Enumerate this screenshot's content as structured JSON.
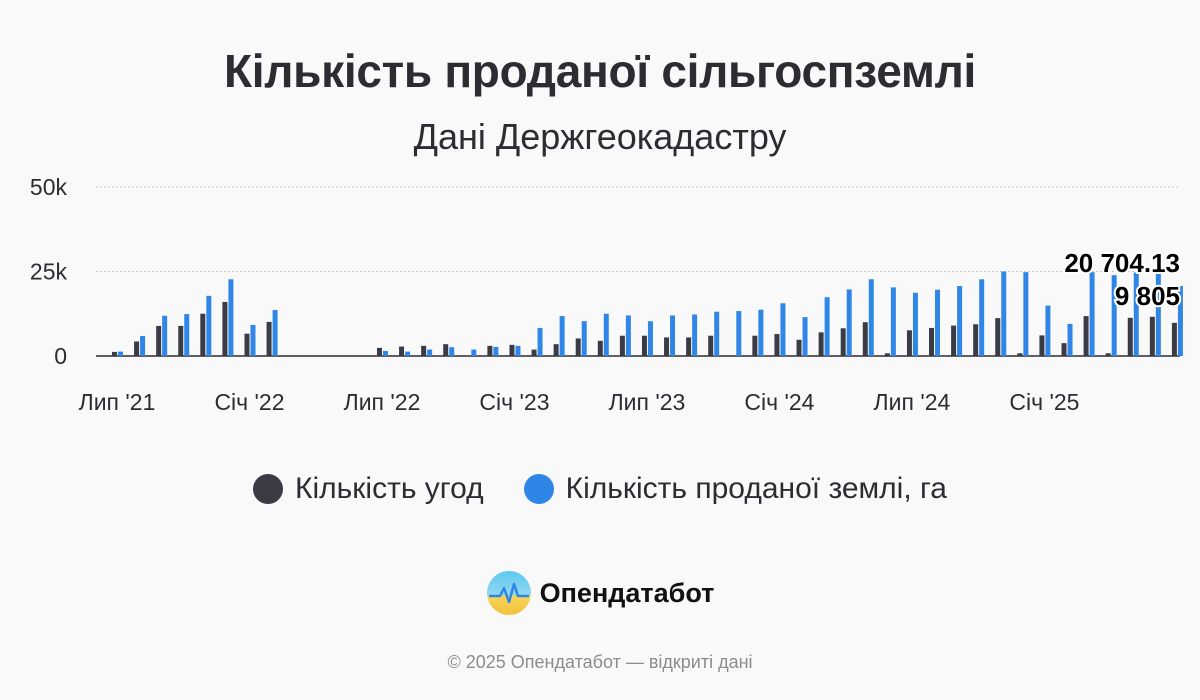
{
  "chart_data": {
    "type": "bar",
    "title": "Кількість проданої сільгоспземлі",
    "subtitle": "Дані Держгеокадастру",
    "x_tick_labels": [
      "Лип '21",
      "Січ '22",
      "Лип '22",
      "Січ '23",
      "Лип '23",
      "Січ '24",
      "Лип '24",
      "Січ '25"
    ],
    "y_tick_labels": [
      "0",
      "25k",
      "50k"
    ],
    "ylim": [
      0,
      50000
    ],
    "grid": true,
    "legend_position": "bottom",
    "categories": [
      "2021-07",
      "2021-08",
      "2021-09",
      "2021-10",
      "2021-11",
      "2021-12",
      "2022-01",
      "2022-02",
      "2022-03",
      "2022-04",
      "2022-05",
      "2022-06",
      "2022-07",
      "2022-08",
      "2022-09",
      "2022-10",
      "2022-11",
      "2022-12",
      "2023-01",
      "2023-02",
      "2023-03",
      "2023-04",
      "2023-05",
      "2023-06",
      "2023-07",
      "2023-08",
      "2023-09",
      "2023-10",
      "2023-11",
      "2023-12",
      "2024-01",
      "2024-02",
      "2024-03",
      "2024-04",
      "2024-05",
      "2024-06",
      "2024-07",
      "2024-08",
      "2024-09",
      "2024-10",
      "2024-11",
      "2024-12",
      "2025-01",
      "2025-02",
      "2025-03",
      "2025-04",
      "2025-05",
      "2025-06",
      "2025-07"
    ],
    "series": [
      {
        "name": "Кількість угод",
        "color": "#3a3b45",
        "values": [
          1200,
          4300,
          8900,
          8900,
          12500,
          16000,
          6600,
          10100,
          null,
          null,
          null,
          null,
          2400,
          2800,
          3000,
          3500,
          null,
          3000,
          3300,
          1900,
          3500,
          5200,
          4500,
          6000,
          6000,
          5500,
          5500,
          6000,
          null,
          6000,
          6500,
          4800,
          7000,
          8200,
          10000,
          800,
          7600,
          8300,
          9000,
          9400,
          11200,
          800,
          6100,
          3800,
          11800,
          800,
          11300,
          11600,
          9805
        ]
      },
      {
        "name": "Кількість проданої землі, га",
        "color": "#2f86e6",
        "values": [
          1300,
          5900,
          11900,
          12400,
          17800,
          22700,
          9200,
          13600,
          null,
          null,
          null,
          null,
          1500,
          1300,
          1900,
          2600,
          1900,
          2700,
          3000,
          8300,
          11800,
          10300,
          12500,
          12000,
          10300,
          12000,
          12300,
          13100,
          13300,
          13700,
          15600,
          11500,
          17400,
          19700,
          22700,
          20300,
          18700,
          19600,
          20700,
          22700,
          25000,
          24800,
          14900,
          9500,
          24800,
          23900,
          24700,
          25000,
          20704.13
        ]
      }
    ],
    "annotations": [
      "20 704.13",
      "9 805"
    ]
  },
  "legend": [
    {
      "label": "Кількість угод",
      "color": "#3a3b45"
    },
    {
      "label": "Кількість проданої землі, га",
      "color": "#2f86e6"
    }
  ],
  "brand": {
    "name": "Опендатабот"
  },
  "footer": {
    "text": "© 2025 Опендатабот — відкриті дані"
  }
}
